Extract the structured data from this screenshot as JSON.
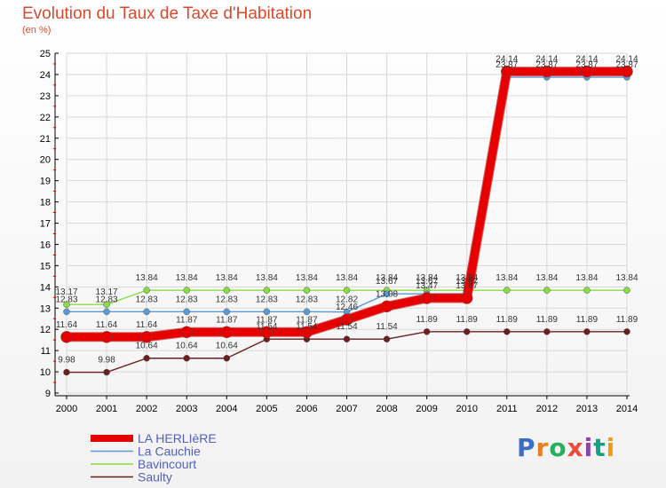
{
  "chart_data": {
    "type": "line",
    "title": "Evolution du Taux de Taxe d'Habitation",
    "subtitle": "(en %)",
    "xlabel": "",
    "ylabel": "",
    "ylim": [
      9,
      25
    ],
    "yticks": [
      "9",
      "10",
      "11",
      "12",
      "13",
      "14",
      "15",
      "16",
      "17",
      "18",
      "19",
      "20",
      "21",
      "22",
      "23",
      "24",
      "25"
    ],
    "categories": [
      "2000",
      "2001",
      "2002",
      "2003",
      "2004",
      "2005",
      "2006",
      "2007",
      "2008",
      "2009",
      "2010",
      "2011",
      "2012",
      "2013",
      "2014"
    ],
    "series": [
      {
        "name": "LA HERLIèRE",
        "color": "#e60000",
        "values": [
          11.64,
          11.64,
          11.64,
          11.87,
          11.87,
          11.87,
          11.87,
          12.46,
          13.08,
          13.47,
          13.47,
          24.14,
          24.14,
          24.14,
          24.14
        ],
        "labels": [
          "11.64",
          "11.64",
          "11.64",
          "11.87",
          "11.87",
          "11.87",
          "11.87",
          "12.46",
          "13.08",
          "13.47",
          "13.47",
          "24.14",
          "24.14",
          "24.14",
          "24.14"
        ]
      },
      {
        "name": "La Cauchie",
        "color": "#5b9bd5",
        "values": [
          12.83,
          12.83,
          12.83,
          12.83,
          12.83,
          12.83,
          12.83,
          12.82,
          13.67,
          13.67,
          13.67,
          23.87,
          23.87,
          23.87,
          23.87
        ],
        "labels": [
          "12.83",
          "12.83",
          "12.83",
          "12.83",
          "12.83",
          "12.83",
          "12.83",
          "12.82",
          "13.67",
          "13.67",
          "13.67",
          "23.87",
          "23.87",
          "23.87",
          "23.87"
        ]
      },
      {
        "name": "Bavincourt",
        "color": "#88dd44",
        "values": [
          13.17,
          13.17,
          13.84,
          13.84,
          13.84,
          13.84,
          13.84,
          13.84,
          13.84,
          13.84,
          13.84,
          13.84,
          13.84,
          13.84,
          13.84
        ],
        "labels": [
          "13.17",
          "13.17",
          "13.84",
          "13.84",
          "13.84",
          "13.84",
          "13.84",
          "13.84",
          "13.84",
          "13.84",
          "13.84",
          "13.84",
          "13.84",
          "13.84",
          "13.84"
        ]
      },
      {
        "name": "Saulty",
        "color": "#6b1e1e",
        "values": [
          9.98,
          9.98,
          10.64,
          10.64,
          10.64,
          11.54,
          11.54,
          11.54,
          11.54,
          11.89,
          11.89,
          11.89,
          11.89,
          11.89,
          11.89
        ],
        "labels": [
          "9.98",
          "9.98",
          "10.64",
          "10.64",
          "10.64",
          "11.54",
          "11.54",
          "11.54",
          "11.54",
          "11.89",
          "11.89",
          "11.89",
          "11.89",
          "11.89",
          "11.89"
        ]
      }
    ]
  },
  "legend_position": "bottom-left",
  "logo_text": "Proxiti"
}
